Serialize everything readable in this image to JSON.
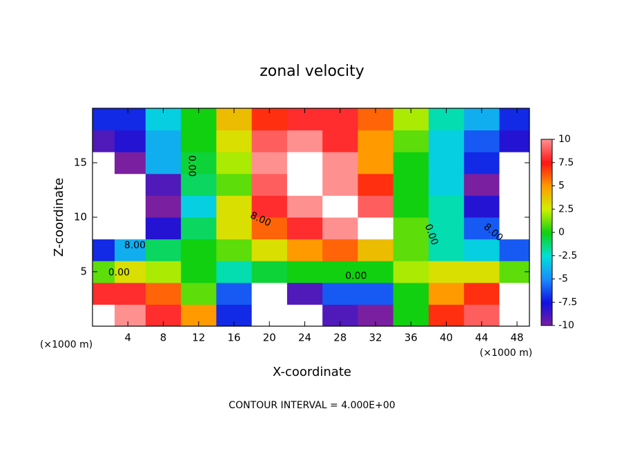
{
  "chart_data": {
    "type": "heatmap",
    "title": "zonal velocity",
    "x_label": "X-coordinate",
    "y_label": "Z-coordinate",
    "unit_labels": [
      "(×1000 m)",
      "(×1000 m)"
    ],
    "footer": "CONTOUR INTERVAL = 4.000E+00",
    "xlim": [
      0,
      49.4
    ],
    "ylim": [
      0,
      20
    ],
    "xticks": [
      4,
      8,
      12,
      16,
      20,
      24,
      28,
      32,
      36,
      40,
      44,
      48
    ],
    "yticks": [
      5,
      10,
      15
    ],
    "x": [
      1,
      4,
      8,
      12,
      16,
      20,
      24,
      28,
      32,
      36,
      40,
      44,
      48
    ],
    "y": [
      1,
      3,
      5,
      7,
      9,
      11,
      13,
      15,
      17,
      19
    ],
    "z": [
      [
        11,
        10,
        8,
        5,
        -7,
        -11,
        -11,
        -9,
        -10,
        0,
        7,
        9,
        11
      ],
      [
        8,
        8,
        6,
        1,
        -6,
        -11,
        -9,
        -6,
        -6,
        0,
        5,
        7,
        11
      ],
      [
        1,
        3,
        2,
        0,
        -2,
        -0.5,
        0,
        0,
        0,
        2,
        3,
        3,
        1
      ],
      [
        -7,
        -4,
        -1,
        0,
        1,
        3,
        5,
        6,
        4,
        1,
        -2,
        -3,
        -6
      ],
      [
        -12,
        -11,
        -8,
        -1,
        3,
        6,
        8,
        10,
        11,
        1,
        -2,
        -6,
        -11
      ],
      [
        -12,
        -12,
        -10,
        -3,
        3,
        8,
        10,
        11,
        9,
        0,
        -2,
        -8,
        -12
      ],
      [
        -12,
        -12,
        -9,
        -1,
        1,
        9,
        12,
        10,
        7,
        0,
        -3,
        -10,
        -12
      ],
      [
        -12,
        -10,
        -4,
        -0.5,
        2,
        10,
        12,
        10,
        5,
        0,
        -3,
        -7,
        -12
      ],
      [
        -9,
        -8,
        -4,
        0,
        3,
        9,
        10,
        8,
        5,
        1,
        -3,
        -6,
        -8
      ],
      [
        -7,
        -7,
        -3,
        0,
        4,
        7,
        8,
        8,
        6,
        2,
        -2,
        -4,
        -7
      ]
    ],
    "colorbar_ticks": [
      -10,
      -7.5,
      -5,
      -2.5,
      0,
      2.5,
      5,
      7.5,
      10
    ],
    "colorbar_colors": [
      "#7a1fa0",
      "#1010e0",
      "#1a8cff",
      "#00e0d8",
      "#10d010",
      "#d0f000",
      "#ff9a00",
      "#ff1414",
      "#ff9090"
    ],
    "out_of_range_color": "#ffffff",
    "annotations": [
      {
        "text": "0.00",
        "x": 11.2,
        "y": 14.7,
        "angle": 90
      },
      {
        "text": "8.00",
        "x": 19,
        "y": 9.8,
        "angle": 25
      },
      {
        "text": "0.00",
        "x": 3,
        "y": 4.9,
        "angle": 0
      },
      {
        "text": "8.00",
        "x": 4.8,
        "y": 7.4,
        "angle": 0
      },
      {
        "text": "0.00",
        "x": 29.8,
        "y": 4.6,
        "angle": 0
      },
      {
        "text": "0.00",
        "x": 38.3,
        "y": 8.4,
        "angle": 70
      },
      {
        "text": "8.00",
        "x": 45.3,
        "y": 8.6,
        "angle": 40
      }
    ]
  }
}
